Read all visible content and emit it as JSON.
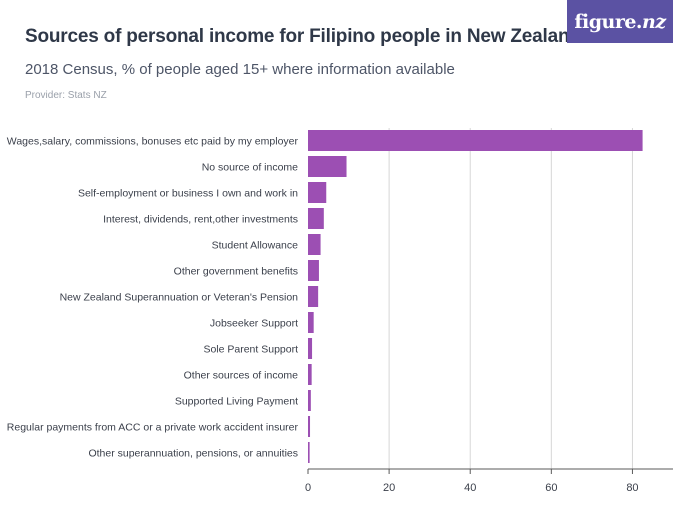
{
  "header": {
    "title": "Sources of personal income for Filipino people in New Zealand",
    "subtitle": "2018 Census, % of people aged 15+ where information available",
    "provider": "Provider: Stats NZ"
  },
  "logo": {
    "text_main": "figure.",
    "text_accent": "nz"
  },
  "colors": {
    "bar": "#9c4fb3",
    "grid": "#d6d6d6",
    "axis": "#5a5a5a",
    "logo_bg": "#5b52a3"
  },
  "chart_data": {
    "type": "bar",
    "orientation": "horizontal",
    "categories": [
      "Wages,salary, commissions, bonuses etc paid by my employer",
      "No source of income",
      "Self-employment or business I own and work in",
      "Interest, dividends, rent,other investments",
      "Student Allowance",
      "Other government benefits",
      "New Zealand Superannuation or Veteran's Pension",
      "Jobseeker Support",
      "Sole Parent Support",
      "Other sources of income",
      "Supported Living Payment",
      "Regular payments from ACC or a private work accident insurer",
      "Other superannuation, pensions, or annuities"
    ],
    "values": [
      82.5,
      9.5,
      4.5,
      3.9,
      3.1,
      2.7,
      2.5,
      1.4,
      1.0,
      0.9,
      0.7,
      0.5,
      0.4
    ],
    "xlim": [
      0,
      90
    ],
    "xticks": [
      0,
      20,
      40,
      60,
      80
    ],
    "grid": true
  }
}
